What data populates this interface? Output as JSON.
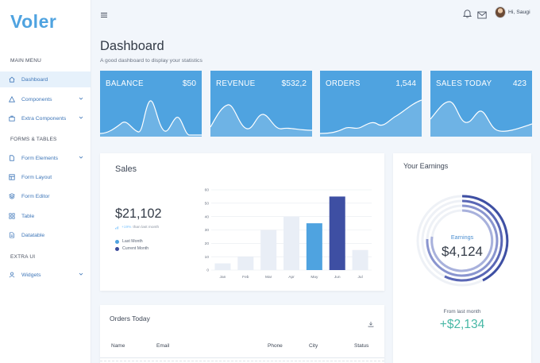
{
  "brand": "Voler",
  "sidebar": {
    "sections": [
      {
        "title": "MAIN MENU"
      },
      {
        "title": "FORMS & TABLES"
      },
      {
        "title": "EXTRA UI"
      }
    ],
    "items": [
      {
        "label": "Dashboard",
        "icon": "home-icon",
        "active": true
      },
      {
        "label": "Components",
        "icon": "triangle-icon",
        "has_submenu": true
      },
      {
        "label": "Extra Components",
        "icon": "briefcase-icon",
        "has_submenu": true
      },
      {
        "label": "Form Elements",
        "icon": "file-icon",
        "has_submenu": true
      },
      {
        "label": "Form Layout",
        "icon": "layout-icon"
      },
      {
        "label": "Form Editor",
        "icon": "layers-icon"
      },
      {
        "label": "Table",
        "icon": "grid-icon"
      },
      {
        "label": "Datatable",
        "icon": "file-text-icon"
      },
      {
        "label": "Widgets",
        "icon": "user-icon",
        "has_submenu": true
      }
    ]
  },
  "topbar": {
    "menu_icon": "hamburger-icon",
    "notification_icon": "bell-icon",
    "mail_icon": "mail-icon",
    "user_name": "Hi, Saugi"
  },
  "page": {
    "title": "Dashboard",
    "subtitle": "A good dashboard to display your statistics"
  },
  "stats": [
    {
      "label": "BALANCE",
      "value": "$50"
    },
    {
      "label": "REVENUE",
      "value": "$532,2"
    },
    {
      "label": "ORDERS",
      "value": "1,544"
    },
    {
      "label": "SALES TODAY",
      "value": "423"
    }
  ],
  "sales": {
    "title": "Sales",
    "total": "$21,102",
    "change": "+19%",
    "change_text": "than last month",
    "legend": [
      {
        "label": "Last Month",
        "color": "#4fa3e0"
      },
      {
        "label": "Current Month",
        "color": "#3a4a9a"
      }
    ]
  },
  "chart_data": {
    "type": "bar",
    "categories": [
      "Jan",
      "Feb",
      "Mar",
      "Apr",
      "May",
      "Jun",
      "Jul"
    ],
    "values": [
      5,
      10,
      30,
      40,
      35,
      55,
      15
    ],
    "bar_colors": [
      "#e9eef6",
      "#e9eef6",
      "#e9eef6",
      "#e9eef6",
      "#4fa3e0",
      "#3e4fa3",
      "#e9eef6"
    ],
    "ylim": [
      0,
      60
    ],
    "yticks": [
      0,
      10,
      20,
      30,
      40,
      50,
      60
    ],
    "grid": true
  },
  "earnings": {
    "title": "Your Earnings",
    "label": "Earnings",
    "value": "$4,124",
    "from_text": "From last month",
    "delta": "+$2,134"
  },
  "orders": {
    "title": "Orders Today",
    "download_icon": "download-icon",
    "columns": [
      "Name",
      "Email",
      "Phone",
      "City",
      "Status"
    ]
  },
  "colors": {
    "accent": "#4fa3e0",
    "dark_accent": "#3e4fa3",
    "positive": "#48b8a6"
  }
}
